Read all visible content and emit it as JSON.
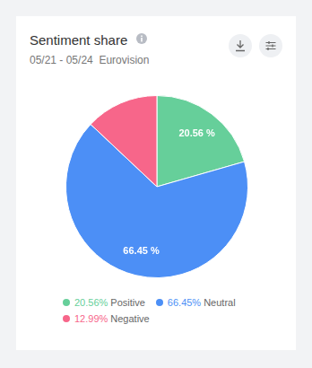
{
  "chart_data": {
    "type": "pie",
    "title": "Sentiment share",
    "subtitle": "05/21 - 05/24  Eurovision",
    "categories": [
      "Positive",
      "Neutral",
      "Negative"
    ],
    "values": [
      20.56,
      66.45,
      12.99
    ],
    "colors": [
      "#66cf9a",
      "#4c8ff6",
      "#f7668a"
    ],
    "data_labels": true,
    "value_labels": [
      "20.56 %",
      "66.45 %",
      null
    ],
    "legend_labels": [
      "20.56%",
      "66.45%",
      "12.99%"
    ],
    "legend": "bottom"
  }
}
